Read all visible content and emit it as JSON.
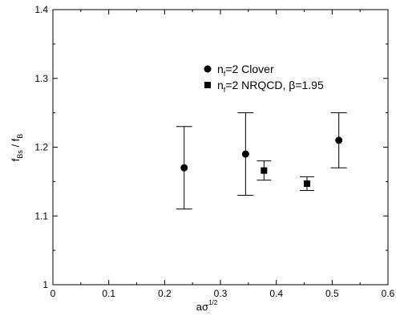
{
  "chart_data": {
    "type": "scatter",
    "title": "",
    "xlabel": {
      "base": "aσ",
      "sup": "1/2"
    },
    "ylabel": {
      "pre": "f",
      "sub1": "Bs",
      "mid": " / f",
      "sub2": "B"
    },
    "xlim": [
      0,
      0.6
    ],
    "ylim": [
      1,
      1.4
    ],
    "xticks": [
      "0",
      "0.1",
      "0.2",
      "0.3",
      "0.4",
      "0.5",
      "0.6"
    ],
    "yticks": [
      "1",
      "1.1",
      "1.2",
      "1.3",
      "1.4"
    ],
    "grid": false,
    "legend_position": "top-right",
    "series": [
      {
        "name": {
          "pre": "n",
          "sub": "f",
          "post": "=2 Clover"
        },
        "marker": "circle",
        "color": "#000000",
        "points": [
          {
            "x": 0.235,
            "y": 1.17,
            "ylo": 1.11,
            "yhi": 1.23
          },
          {
            "x": 0.345,
            "y": 1.19,
            "ylo": 1.13,
            "yhi": 1.25
          },
          {
            "x": 0.512,
            "y": 1.21,
            "ylo": 1.17,
            "yhi": 1.25
          }
        ]
      },
      {
        "name": {
          "pre": "n",
          "sub": "f",
          "post": "=2 NRQCD, β=1.95"
        },
        "marker": "square",
        "color": "#000000",
        "points": [
          {
            "x": 0.378,
            "y": 1.166,
            "ylo": 1.152,
            "yhi": 1.18
          },
          {
            "x": 0.455,
            "y": 1.147,
            "ylo": 1.137,
            "yhi": 1.157
          }
        ]
      }
    ]
  }
}
